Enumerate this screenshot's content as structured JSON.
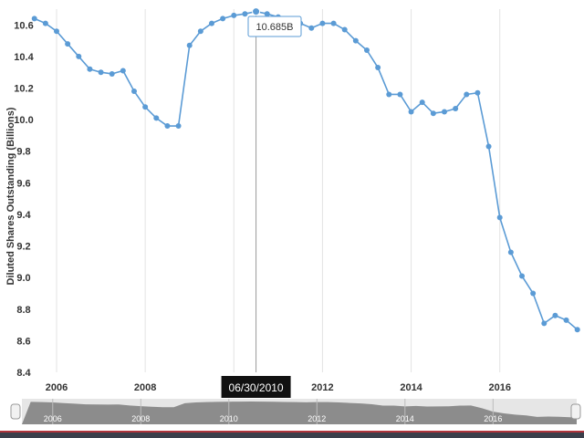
{
  "chart_data": {
    "type": "line",
    "ylabel": "Diluted Shares Outstanding (Billions)",
    "ylim": [
      8.4,
      10.7
    ],
    "yticks": [
      "8.4",
      "8.6",
      "8.8",
      "9.0",
      "9.2",
      "9.4",
      "9.6",
      "9.8",
      "10.0",
      "10.2",
      "10.4",
      "10.6"
    ],
    "xlim": [
      2005.3,
      2017.9
    ],
    "xticks": [
      "2006",
      "2008",
      "2010",
      "2012",
      "2014",
      "2016"
    ],
    "x": [
      2005.5,
      2005.75,
      2006.0,
      2006.25,
      2006.5,
      2006.75,
      2007.0,
      2007.25,
      2007.5,
      2007.75,
      2008.0,
      2008.25,
      2008.5,
      2008.75,
      2009.0,
      2009.25,
      2009.5,
      2009.75,
      2010.0,
      2010.25,
      2010.5,
      2010.75,
      2011.0,
      2011.25,
      2011.5,
      2011.75,
      2012.0,
      2012.25,
      2012.5,
      2012.75,
      2013.0,
      2013.25,
      2013.5,
      2013.75,
      2014.0,
      2014.25,
      2014.5,
      2014.75,
      2015.0,
      2015.25,
      2015.5,
      2015.75,
      2016.0,
      2016.25,
      2016.5,
      2016.75,
      2017.0,
      2017.25,
      2017.5,
      2017.75
    ],
    "values": [
      10.64,
      10.61,
      10.56,
      10.48,
      10.4,
      10.32,
      10.3,
      10.29,
      10.31,
      10.18,
      10.08,
      10.01,
      9.96,
      9.96,
      10.47,
      10.56,
      10.61,
      10.64,
      10.66,
      10.67,
      10.685,
      10.67,
      10.65,
      10.62,
      10.61,
      10.58,
      10.61,
      10.61,
      10.57,
      10.5,
      10.44,
      10.33,
      10.16,
      10.16,
      10.05,
      10.11,
      10.04,
      10.05,
      10.07,
      10.16,
      10.17,
      9.83,
      9.38,
      9.16,
      9.01,
      8.9,
      8.71,
      8.76,
      8.73,
      8.67
    ],
    "highlight": {
      "date": "06/30/2010",
      "value_label": "10.685B",
      "index": 20
    },
    "grid": true,
    "navigator": {
      "xticks": [
        "2006",
        "2008",
        "2010",
        "2012",
        "2014",
        "2016"
      ]
    },
    "colors": {
      "line": "#5b9bd5",
      "crosshair": "#999999",
      "navigator": "#8c8c8c",
      "navigator_bg": "#e6e6e6"
    }
  }
}
